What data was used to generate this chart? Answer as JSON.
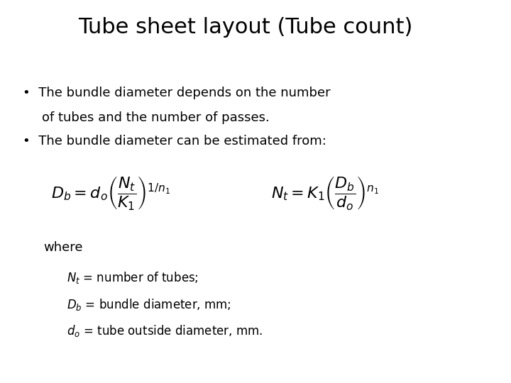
{
  "title": "Tube sheet layout (Tube count)",
  "bullet1_line1": "The bundle diameter depends on the number",
  "bullet1_line2": "of tubes and the number of passes.",
  "bullet2": "The bundle diameter can be estimated from:",
  "eq1": "$D_b = d_o \\left(\\dfrac{N_t}{K_1}\\right)^{1/n_1}$",
  "eq2": "$N_t = K_1 \\left(\\dfrac{D_b}{d_o}\\right)^{n_1}$",
  "where": "where",
  "def1": "$N_t$ = number of tubes;",
  "def2": "$D_b$ = bundle diameter, mm;",
  "def3": "$d_o$ = tube outside diameter, mm.",
  "bg_color": "#ffffff",
  "text_color": "#000000",
  "title_fontsize": 22,
  "body_fontsize": 13,
  "eq_fontsize": 14,
  "where_fontsize": 12,
  "def_fontsize": 11
}
